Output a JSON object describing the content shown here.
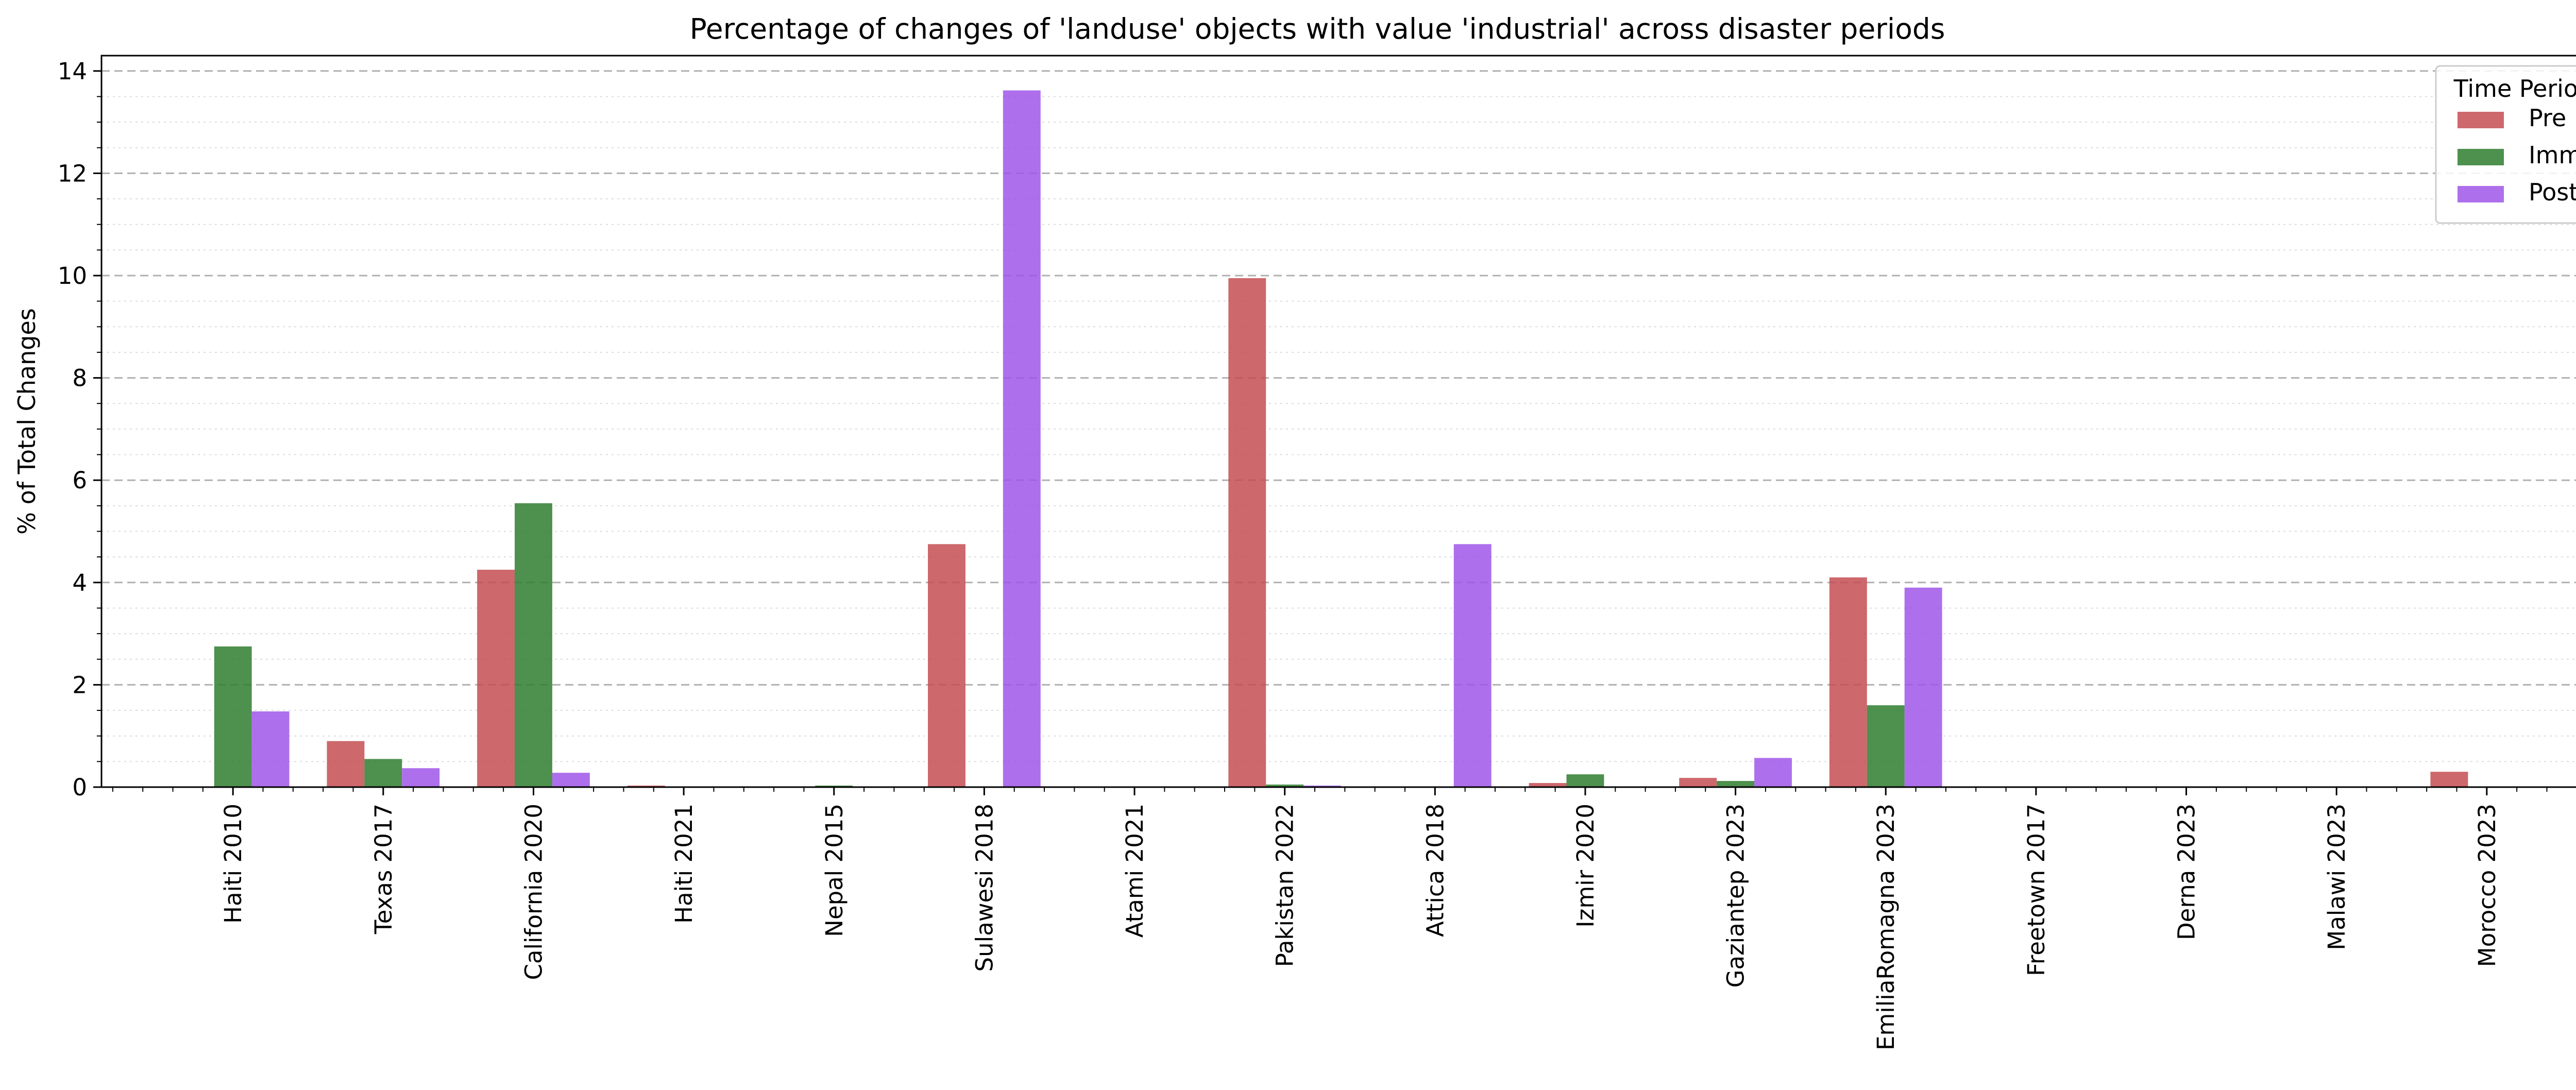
{
  "chart_data": {
    "type": "bar",
    "title": "Percentage of changes of 'landuse' objects with value 'industrial' across disaster periods",
    "xlabel": "",
    "ylabel": "% of Total Changes",
    "ylim": [
      0,
      14.3
    ],
    "yticks": [
      0,
      2,
      4,
      6,
      8,
      10,
      12,
      14
    ],
    "minor_ytick_step": 0.5,
    "grid": {
      "major": "dashed",
      "minor": "dotted",
      "axis": "y"
    },
    "legend": {
      "title": "Time Period",
      "placement": "top-right"
    },
    "categories": [
      "Haiti 2010",
      "Texas 2017",
      "California 2020",
      "Haiti 2021",
      "Nepal 2015",
      "Sulawesi 2018",
      "Atami 2021",
      "Pakistan 2022",
      "Attica 2018",
      "Izmir 2020",
      "Gaziantep 2023",
      "EmiliaRomagna 2023",
      "Freetown 2017",
      "Derna 2023",
      "Malawi 2023",
      "Morocco 2023"
    ],
    "series": [
      {
        "name": "Pre",
        "color": "#c44e52",
        "values": [
          0,
          0.9,
          4.25,
          0.03,
          0,
          4.75,
          0,
          9.95,
          0,
          0.08,
          0.18,
          4.1,
          0,
          0,
          0,
          0.3
        ]
      },
      {
        "name": "Imm",
        "color": "#2f7d2f",
        "values": [
          2.75,
          0.55,
          5.55,
          0,
          0.03,
          0,
          0,
          0.05,
          0,
          0.25,
          0.12,
          1.6,
          0,
          0,
          0,
          0
        ]
      },
      {
        "name": "Post",
        "color": "#a056e9",
        "values": [
          1.48,
          0.37,
          0.28,
          0,
          0,
          13.62,
          0,
          0.03,
          4.75,
          0,
          0.57,
          3.9,
          0,
          0,
          0,
          0
        ]
      }
    ]
  }
}
